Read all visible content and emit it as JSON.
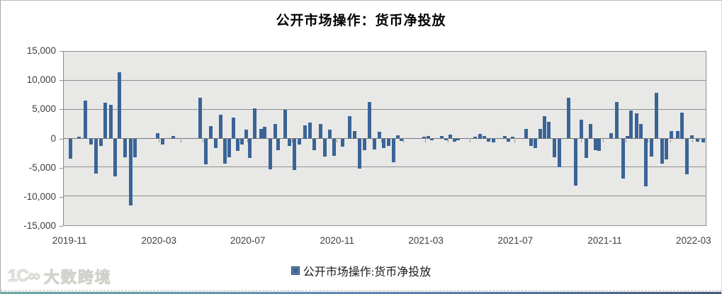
{
  "watermark": {
    "logo": "1C∞",
    "brand": "大数跨境"
  },
  "chart_data": {
    "type": "bar",
    "title": "公开市场操作：货币净投放",
    "series_name": "公开市场操作:货币净投放",
    "legend_position": "bottom",
    "grid": true,
    "ylim": [
      -15000,
      15000
    ],
    "ytick_step": 5000,
    "ytick_labels": [
      "15,000",
      "10,000",
      "5,000",
      "0",
      "-5,000",
      "-10,000",
      "-15,000"
    ],
    "bar_color": "#3a6496",
    "plot_bg": "#e8e8e7",
    "grid_color": "#8f8f8f",
    "xticks": [
      {
        "label": "2019-11",
        "pos": 1.0
      },
      {
        "label": "2020-03",
        "pos": 14.9
      },
      {
        "label": "2020-07",
        "pos": 28.7
      },
      {
        "label": "2020-11",
        "pos": 42.6
      },
      {
        "label": "2021-03",
        "pos": 56.4
      },
      {
        "label": "2021-07",
        "pos": 70.3
      },
      {
        "label": "2021-11",
        "pos": 84.2
      },
      {
        "label": "2022-03",
        "pos": 98.0
      }
    ],
    "month_ticks": {
      "start_pct": 1.0,
      "step_pct": 3.465,
      "count": 29
    },
    "bars_format": "[position_pct_along_time_axis, net_injection_value]",
    "bars": [
      [
        1.1,
        -3500
      ],
      [
        2.4,
        250
      ],
      [
        3.4,
        6500
      ],
      [
        4.2,
        -1000
      ],
      [
        5.0,
        -6000
      ],
      [
        5.8,
        -1300
      ],
      [
        6.5,
        6200
      ],
      [
        7.3,
        5800
      ],
      [
        8.0,
        -6500
      ],
      [
        8.7,
        11400
      ],
      [
        9.5,
        -3300
      ],
      [
        10.4,
        -11600
      ],
      [
        11.1,
        -3300
      ],
      [
        14.6,
        900
      ],
      [
        15.4,
        -1000
      ],
      [
        17.1,
        450
      ],
      [
        21.3,
        7000
      ],
      [
        22.1,
        -4500
      ],
      [
        22.9,
        2100
      ],
      [
        23.7,
        -1700
      ],
      [
        24.5,
        4100
      ],
      [
        25.1,
        -4400
      ],
      [
        25.8,
        -3300
      ],
      [
        26.4,
        3600
      ],
      [
        27.1,
        -2200
      ],
      [
        27.8,
        -1000
      ],
      [
        28.4,
        1550
      ],
      [
        29.0,
        -3350
      ],
      [
        29.7,
        5250
      ],
      [
        30.7,
        1700
      ],
      [
        31.3,
        2050
      ],
      [
        32.2,
        -5300
      ],
      [
        32.9,
        2500
      ],
      [
        33.4,
        -2000
      ],
      [
        34.5,
        5000
      ],
      [
        35.2,
        -1300
      ],
      [
        35.9,
        -5500
      ],
      [
        36.7,
        -1000
      ],
      [
        37.6,
        2250
      ],
      [
        38.4,
        2700
      ],
      [
        39.0,
        -2050
      ],
      [
        40.0,
        2550
      ],
      [
        40.7,
        -3100
      ],
      [
        41.5,
        1550
      ],
      [
        42.1,
        -2950
      ],
      [
        43.4,
        -1450
      ],
      [
        44.5,
        3800
      ],
      [
        45.3,
        1250
      ],
      [
        46.1,
        -5250
      ],
      [
        46.9,
        -2050
      ],
      [
        47.6,
        6300
      ],
      [
        48.4,
        -1950
      ],
      [
        49.2,
        1150
      ],
      [
        49.8,
        -1700
      ],
      [
        50.6,
        -1300
      ],
      [
        51.4,
        -4100
      ],
      [
        52.0,
        500
      ],
      [
        52.6,
        -400
      ],
      [
        56.1,
        350
      ],
      [
        56.8,
        400
      ],
      [
        57.3,
        -300
      ],
      [
        58.9,
        400
      ],
      [
        59.5,
        -350
      ],
      [
        60.2,
        700
      ],
      [
        60.9,
        -500
      ],
      [
        61.4,
        -350
      ],
      [
        64.1,
        350
      ],
      [
        64.8,
        750
      ],
      [
        65.5,
        400
      ],
      [
        66.2,
        -600
      ],
      [
        66.9,
        -700
      ],
      [
        68.7,
        450
      ],
      [
        69.3,
        -500
      ],
      [
        69.9,
        300
      ],
      [
        72.0,
        1600
      ],
      [
        72.8,
        -1300
      ],
      [
        73.5,
        -1600
      ],
      [
        74.2,
        1650
      ],
      [
        74.9,
        3800
      ],
      [
        75.6,
        2900
      ],
      [
        76.4,
        -3300
      ],
      [
        77.2,
        -4900
      ],
      [
        78.6,
        7100
      ],
      [
        79.7,
        -8100
      ],
      [
        80.6,
        3200
      ],
      [
        81.4,
        -3350
      ],
      [
        82.1,
        2450
      ],
      [
        82.8,
        -2000
      ],
      [
        83.4,
        -2200
      ],
      [
        85.3,
        900
      ],
      [
        86.1,
        6300
      ],
      [
        87.1,
        -6900
      ],
      [
        87.8,
        400
      ],
      [
        88.4,
        4800
      ],
      [
        89.2,
        4400
      ],
      [
        89.9,
        2500
      ],
      [
        90.7,
        -8300
      ],
      [
        91.6,
        -3100
      ],
      [
        92.3,
        7900
      ],
      [
        93.2,
        -4400
      ],
      [
        93.9,
        -3600
      ],
      [
        94.7,
        1300
      ],
      [
        95.6,
        1250
      ],
      [
        96.3,
        4500
      ],
      [
        97.1,
        -6200
      ],
      [
        97.8,
        500
      ],
      [
        98.7,
        -500
      ],
      [
        99.6,
        -700
      ]
    ]
  }
}
